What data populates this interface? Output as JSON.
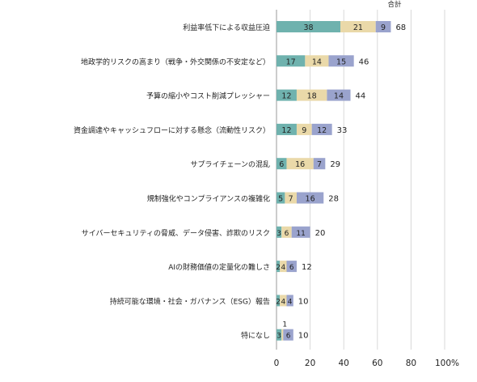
{
  "chart_data": {
    "type": "bar",
    "orientation": "horizontal",
    "stacked": true,
    "total_header": "合計",
    "categories": [
      "利益率低下による収益圧迫",
      "地政学的リスクの高まり（戦争・外交関係の不安定など）",
      "予算の縮小やコスト削減プレッシャー",
      "資金調達やキャッシュフローに対する懸念（流動性リスク）",
      "サプライチェーンの混乱",
      "規制強化やコンプライアンスの複雑化",
      "サイバーセキュリティの脅威、データ侵害、詐欺のリスク",
      "AIの財務価値の定量化の難しさ",
      "持続可能な環境・社会・ガバナンス（ESG）報告",
      "特になし"
    ],
    "series": [
      {
        "color": "#6fb2ae",
        "values": [
          38,
          17,
          12,
          12,
          6,
          5,
          3,
          2,
          2,
          3
        ]
      },
      {
        "color": "#ead9a9",
        "values": [
          21,
          14,
          18,
          9,
          16,
          7,
          6,
          4,
          4,
          1
        ]
      },
      {
        "color": "#9aa3cd",
        "values": [
          9,
          15,
          14,
          12,
          7,
          16,
          11,
          6,
          4,
          6
        ]
      }
    ],
    "totals": [
      68,
      46,
      44,
      33,
      29,
      28,
      20,
      12,
      10,
      10
    ],
    "xlim": [
      0,
      100
    ],
    "x_ticks": [
      "0",
      "20",
      "40",
      "60",
      "80",
      "100%"
    ],
    "grid": true
  }
}
